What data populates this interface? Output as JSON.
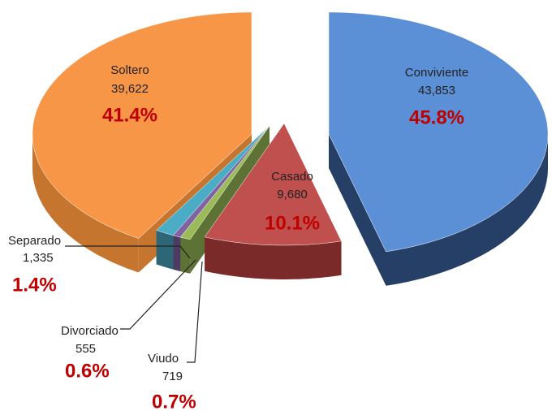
{
  "chart_data": {
    "type": "pie3d",
    "categories": [
      "Conviviente",
      "Casado",
      "Viudo",
      "Divorciado",
      "Separado",
      "Soltero"
    ],
    "values": [
      43853,
      9680,
      719,
      555,
      1335,
      39622
    ],
    "value_labels": [
      "43,853",
      "9,680",
      "719",
      "555",
      "1,335",
      "39,622"
    ],
    "percent_labels": [
      "45.8%",
      "10.1%",
      "0.7%",
      "0.6%",
      "1.4%",
      "41.4%"
    ],
    "colors": [
      "#5b8fd6",
      "#c0504d",
      "#9bbb59",
      "#8064a2",
      "#4bacc6",
      "#f79646"
    ],
    "side_colors": [
      "#263f66",
      "#7a2a28",
      "#5d7335",
      "#4d3c62",
      "#2d6777",
      "#c6752f"
    ]
  }
}
